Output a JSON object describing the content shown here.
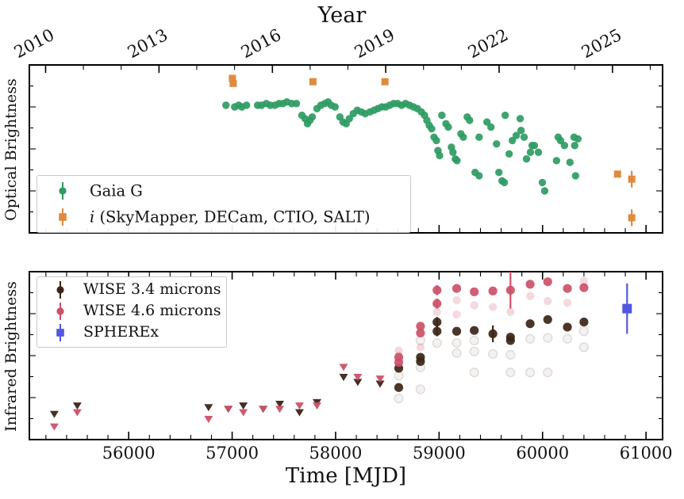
{
  "figure": {
    "top_axis_title": "Year",
    "x_axis_title": "Time [MJD]",
    "top_panel_ylabel": "Optical Brightness",
    "bottom_panel_ylabel": "Infrared Brightness",
    "background": "#ffffff",
    "frame_color": "#000000"
  },
  "legend_top": {
    "items": [
      {
        "label": "Gaia G",
        "marker": "circle",
        "color": "#2e9b62"
      },
      {
        "label_prefix": "i",
        "label_rest": " (SkyMapper, DECam, CTIO, SALT)",
        "marker": "square",
        "color": "#e08a3e"
      }
    ]
  },
  "legend_bottom": {
    "items": [
      {
        "label": "WISE 3.4 microns",
        "marker": "circle",
        "color": "#3b2517"
      },
      {
        "label": "WISE 4.6 microns",
        "marker": "circle",
        "color": "#cc5168"
      },
      {
        "label": "SPHEREx",
        "marker": "square",
        "color": "#5356e0"
      }
    ]
  },
  "chart_data": [
    {
      "type": "scatter",
      "panel": "optical",
      "title": "",
      "ylabel": "Optical Brightness",
      "y_axis_unlabeled": true,
      "ylim": [
        0,
        1
      ],
      "xlim": [
        55040,
        61160
      ],
      "x_units": "MJD",
      "y_units": "normalized brightness (arbitrary, 1 = panel top)",
      "top_axis": {
        "title": "Year",
        "major_ticks": [
          {
            "label": "2010",
            "mjd": 55197
          },
          {
            "label": "2013",
            "mjd": 56293
          },
          {
            "label": "2016",
            "mjd": 57389
          },
          {
            "label": "2019",
            "mjd": 58484
          },
          {
            "label": "2022",
            "mjd": 59580
          },
          {
            "label": "2025",
            "mjd": 60676
          }
        ],
        "minor_tick_step_years": 1
      },
      "series": [
        {
          "name": "Gaia G",
          "marker": "circle",
          "color": "#2e9b62",
          "points": [
            [
              56940,
              0.76
            ],
            [
              57024,
              0.75
            ],
            [
              57063,
              0.76
            ],
            [
              57093,
              0.75
            ],
            [
              57139,
              0.76
            ],
            [
              57246,
              0.76
            ],
            [
              57284,
              0.76
            ],
            [
              57330,
              0.77
            ],
            [
              57368,
              0.76
            ],
            [
              57414,
              0.76
            ],
            [
              57453,
              0.77
            ],
            [
              57491,
              0.77
            ],
            [
              57529,
              0.78
            ],
            [
              57575,
              0.77
            ],
            [
              57621,
              0.77
            ],
            [
              57674,
              0.7
            ],
            [
              57705,
              0.68
            ],
            [
              57728,
              0.65
            ],
            [
              57751,
              0.67
            ],
            [
              57774,
              0.69
            ],
            [
              57820,
              0.74
            ],
            [
              57858,
              0.76
            ],
            [
              57896,
              0.77
            ],
            [
              57927,
              0.78
            ],
            [
              57957,
              0.76
            ],
            [
              57995,
              0.75
            ],
            [
              58041,
              0.69
            ],
            [
              58072,
              0.66
            ],
            [
              58102,
              0.65
            ],
            [
              58133,
              0.68
            ],
            [
              58171,
              0.71
            ],
            [
              58209,
              0.73
            ],
            [
              58248,
              0.72
            ],
            [
              58286,
              0.71
            ],
            [
              58332,
              0.72
            ],
            [
              58370,
              0.73
            ],
            [
              58408,
              0.74
            ],
            [
              58446,
              0.75
            ],
            [
              58485,
              0.75
            ],
            [
              58523,
              0.76
            ],
            [
              58561,
              0.77
            ],
            [
              58599,
              0.77
            ],
            [
              58638,
              0.76
            ],
            [
              58676,
              0.77
            ],
            [
              58714,
              0.76
            ],
            [
              58752,
              0.75
            ],
            [
              58790,
              0.74
            ],
            [
              58829,
              0.72
            ],
            [
              58859,
              0.7
            ],
            [
              58882,
              0.67
            ],
            [
              58905,
              0.64
            ],
            [
              58928,
              0.62
            ],
            [
              58951,
              0.57
            ],
            [
              58974,
              0.55
            ],
            [
              58989,
              0.49
            ],
            [
              59005,
              0.46
            ],
            [
              59027,
              0.7
            ],
            [
              59066,
              0.65
            ],
            [
              59089,
              0.63
            ],
            [
              59119,
              0.51
            ],
            [
              59134,
              0.48
            ],
            [
              59157,
              0.44
            ],
            [
              59173,
              0.43
            ],
            [
              59211,
              0.59
            ],
            [
              59234,
              0.57
            ],
            [
              59272,
              0.69
            ],
            [
              59295,
              0.67
            ],
            [
              59348,
              0.36
            ],
            [
              59387,
              0.57
            ],
            [
              59387,
              0.34
            ],
            [
              59463,
              0.66
            ],
            [
              59501,
              0.63
            ],
            [
              59555,
              0.53
            ],
            [
              59578,
              0.36
            ],
            [
              59608,
              0.31
            ],
            [
              59631,
              0.3
            ],
            [
              59639,
              0.7
            ],
            [
              59677,
              0.47
            ],
            [
              59708,
              0.55
            ],
            [
              59746,
              0.58
            ],
            [
              59784,
              0.68
            ],
            [
              59792,
              0.61
            ],
            [
              59822,
              0.57
            ],
            [
              59845,
              0.44
            ],
            [
              59883,
              0.48
            ],
            [
              59899,
              0.52
            ],
            [
              59921,
              0.52
            ],
            [
              59960,
              0.48
            ],
            [
              59998,
              0.3
            ],
            [
              60021,
              0.25
            ],
            [
              60135,
              0.43
            ],
            [
              60151,
              0.57
            ],
            [
              60174,
              0.55
            ],
            [
              60212,
              0.52
            ],
            [
              60265,
              0.42
            ],
            [
              60304,
              0.57
            ],
            [
              60311,
              0.52
            ],
            [
              60319,
              0.34
            ],
            [
              60342,
              0.56
            ]
          ]
        },
        {
          "name": "i (SkyMapper, DECam, CTIO, SALT)",
          "marker": "square",
          "color": "#e08a3e",
          "points": [
            [
              57002,
              0.92,
              0.02
            ],
            [
              57010,
              0.89,
              0.02
            ],
            [
              57781,
              0.9,
              0
            ],
            [
              58477,
              0.9,
              0
            ],
            [
              60725,
              0.35,
              0
            ],
            [
              60862,
              0.32,
              0.05
            ],
            [
              60862,
              0.09,
              0.05
            ]
          ]
        }
      ]
    },
    {
      "type": "scatter",
      "panel": "infrared",
      "ylabel": "Infrared Brightness",
      "y_axis_unlabeled": true,
      "ylim": [
        0,
        1
      ],
      "xlim": [
        55040,
        61160
      ],
      "xlabel": "Time [MJD]",
      "x_major_ticks": [
        56000,
        57000,
        58000,
        59000,
        60000,
        61000
      ],
      "x_minor_tick_step": 200,
      "series": [
        {
          "name": "WISE 3.4 microns",
          "marker": "circle",
          "color": "#3b2517",
          "upper_limits_triangles": [
            [
              55281,
              0.15
            ],
            [
              55503,
              0.2
            ],
            [
              56772,
              0.19
            ],
            [
              56963,
              0.18
            ],
            [
              57108,
              0.2
            ],
            [
              57300,
              0.18
            ],
            [
              57460,
              0.21
            ],
            [
              57651,
              0.16
            ],
            [
              57820,
              0.22
            ],
            [
              58077,
              0.37
            ],
            [
              58214,
              0.34
            ],
            [
              58430,
              0.33
            ]
          ],
          "detections": [
            [
              58610,
              0.425
            ],
            [
              58610,
              0.31
            ],
            [
              58820,
              0.49
            ],
            [
              58820,
              0.465
            ],
            [
              58980,
              0.7,
              0.03
            ],
            [
              58980,
              0.645,
              0.03
            ],
            [
              59170,
              0.645
            ],
            [
              59340,
              0.65
            ],
            [
              59520,
              0.63,
              0.05
            ],
            [
              59690,
              0.61
            ],
            [
              59690,
              0.59
            ],
            [
              59880,
              0.69
            ],
            [
              60050,
              0.715
            ],
            [
              60240,
              0.67
            ],
            [
              60400,
              0.7
            ]
          ]
        },
        {
          "name": "WISE 4.6 microns",
          "marker": "circle",
          "color": "#cc5168",
          "upper_limits_triangles": [
            [
              55281,
              0.075
            ],
            [
              55503,
              0.16
            ],
            [
              56772,
              0.12
            ],
            [
              56963,
              0.18
            ],
            [
              57108,
              0.16
            ],
            [
              57300,
              0.18
            ],
            [
              57460,
              0.18
            ],
            [
              57651,
              0.2
            ],
            [
              57820,
              0.2
            ],
            [
              58077,
              0.43
            ],
            [
              58214,
              0.37
            ],
            [
              58430,
              0.36
            ]
          ],
          "detections": [
            [
              58610,
              0.49
            ],
            [
              58610,
              0.46
            ],
            [
              58820,
              0.675
            ],
            [
              58820,
              0.635
            ],
            [
              58980,
              0.89,
              0.03
            ],
            [
              58980,
              0.81,
              0.03
            ],
            [
              59170,
              0.9
            ],
            [
              59340,
              0.88
            ],
            [
              59520,
              0.885
            ],
            [
              59690,
              0.89,
              0.11
            ],
            [
              59880,
              0.925
            ],
            [
              60050,
              0.94
            ],
            [
              60240,
              0.9
            ],
            [
              60400,
              0.905
            ]
          ]
        },
        {
          "name": "SPHEREx",
          "marker": "square",
          "color": "#5356e0",
          "detections": [
            [
              60817,
              0.78,
              0.15
            ]
          ]
        }
      ],
      "ghost_points": {
        "pink": [
          [
            58610,
            0.53
          ],
          [
            58610,
            0.5
          ],
          [
            58820,
            0.55
          ],
          [
            58980,
            0.76
          ],
          [
            59170,
            0.83
          ],
          [
            59170,
            0.745
          ],
          [
            59340,
            0.8
          ],
          [
            59520,
            0.79
          ],
          [
            59690,
            0.76
          ],
          [
            59880,
            0.855
          ],
          [
            60050,
            0.825
          ],
          [
            60240,
            0.815
          ],
          [
            60400,
            0.945
          ]
        ],
        "gray": [
          [
            58610,
            0.38
          ],
          [
            58610,
            0.245
          ],
          [
            58820,
            0.59
          ],
          [
            58820,
            0.43
          ],
          [
            58820,
            0.3
          ],
          [
            58980,
            0.575
          ],
          [
            59170,
            0.575
          ],
          [
            59170,
            0.515
          ],
          [
            59340,
            0.59
          ],
          [
            59340,
            0.525
          ],
          [
            59340,
            0.4
          ],
          [
            59520,
            0.51
          ],
          [
            59690,
            0.505
          ],
          [
            59690,
            0.4
          ],
          [
            59880,
            0.6
          ],
          [
            59880,
            0.4
          ],
          [
            60050,
            0.605
          ],
          [
            60050,
            0.4
          ],
          [
            60240,
            0.6
          ],
          [
            60400,
            0.645
          ],
          [
            60400,
            0.55
          ]
        ]
      }
    }
  ]
}
